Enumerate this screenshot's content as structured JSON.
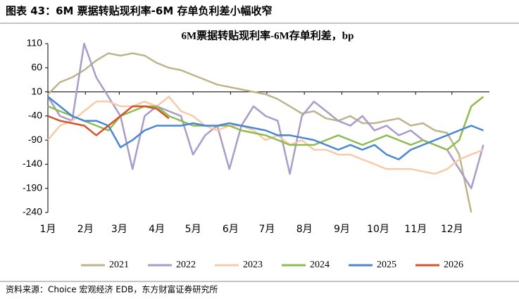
{
  "header": "图表 43：6M 票据转贴现利率-6M 存单负利差小幅收窄",
  "source": "资料来源：Choice 宏观经济 EDB，东方财富证券研究所",
  "chart_data": {
    "type": "line",
    "title": "6M票据转贴现利率-6M存单利差，bp",
    "x": [
      0,
      10,
      20,
      30,
      40,
      50,
      60,
      70,
      80,
      90,
      100,
      110,
      120,
      130,
      140,
      150,
      160,
      170,
      180,
      190,
      200,
      210,
      220,
      230,
      240,
      250,
      260,
      270,
      280,
      290,
      300,
      310,
      320,
      330,
      340,
      350,
      360
    ],
    "xlim": [
      0,
      365
    ],
    "xticks": [
      {
        "value": 0,
        "label": "1月"
      },
      {
        "value": 31,
        "label": "2月"
      },
      {
        "value": 59,
        "label": "3月"
      },
      {
        "value": 90,
        "label": "4月"
      },
      {
        "value": 120,
        "label": "5月"
      },
      {
        "value": 151,
        "label": "6月"
      },
      {
        "value": 181,
        "label": "7月"
      },
      {
        "value": 212,
        "label": "8月"
      },
      {
        "value": 243,
        "label": "9月"
      },
      {
        "value": 273,
        "label": "10月"
      },
      {
        "value": 304,
        "label": "11月"
      },
      {
        "value": 334,
        "label": "12月"
      }
    ],
    "ylim": [
      -240,
      110
    ],
    "yticks": [
      110,
      60,
      10,
      -40,
      -90,
      -140,
      -190,
      -240
    ],
    "x_axis_at": 10,
    "series": [
      {
        "name": "2021",
        "color": "#bcb58b",
        "values": [
          5,
          30,
          40,
          55,
          75,
          90,
          85,
          90,
          85,
          70,
          60,
          55,
          45,
          35,
          25,
          20,
          15,
          10,
          5,
          -5,
          -20,
          -35,
          -30,
          -45,
          -50,
          -40,
          -55,
          -55,
          -50,
          -45,
          -60,
          -55,
          -70,
          -75,
          -120,
          -240,
          null
        ]
      },
      {
        "name": "2022",
        "color": "#a99cc8",
        "values": [
          0,
          -40,
          -50,
          110,
          40,
          0,
          -40,
          -150,
          -40,
          -20,
          -30,
          -40,
          -120,
          -80,
          -60,
          -150,
          -60,
          -20,
          -40,
          -50,
          -160,
          -40,
          -10,
          -30,
          -50,
          -60,
          -40,
          -70,
          -60,
          -80,
          -70,
          -90,
          -100,
          -110,
          -150,
          -190,
          -100
        ]
      },
      {
        "name": "2023",
        "color": "#f8cba8",
        "values": [
          -90,
          -60,
          -50,
          -30,
          -10,
          -10,
          -20,
          -20,
          -10,
          -20,
          0,
          -30,
          -40,
          -60,
          -70,
          -60,
          -60,
          -70,
          -90,
          -80,
          -100,
          -90,
          -110,
          -110,
          -120,
          -120,
          -130,
          -140,
          -150,
          -150,
          -150,
          -155,
          -160,
          -150,
          -130,
          -120,
          -110
        ]
      },
      {
        "name": "2024",
        "color": "#8fbc4f",
        "values": [
          -20,
          -30,
          -40,
          -50,
          -60,
          -70,
          -40,
          -30,
          -20,
          -20,
          -40,
          -50,
          -60,
          -60,
          -60,
          -60,
          -70,
          -75,
          -80,
          -90,
          -100,
          -100,
          -100,
          -90,
          -80,
          -90,
          -100,
          -90,
          -80,
          -90,
          -100,
          -90,
          -100,
          -110,
          -90,
          -20,
          0
        ]
      },
      {
        "name": "2025",
        "color": "#4a86d1",
        "values": [
          0,
          -20,
          -40,
          -50,
          -50,
          -60,
          -105,
          -90,
          -70,
          -60,
          -60,
          -60,
          -55,
          -60,
          -60,
          -55,
          -60,
          -65,
          -70,
          -80,
          -80,
          -85,
          -90,
          -100,
          -110,
          -100,
          -110,
          -100,
          -120,
          -130,
          -110,
          -100,
          -90,
          -80,
          -70,
          -60,
          -70
        ]
      },
      {
        "name": "2026",
        "color": "#d6532a",
        "values": [
          -40,
          -50,
          -55,
          -60,
          -80,
          -60,
          -40,
          -20,
          -20,
          -25,
          -45,
          null,
          null,
          null,
          null,
          null,
          null,
          null,
          null,
          null,
          null,
          null,
          null,
          null,
          null,
          null,
          null,
          null,
          null,
          null,
          null,
          null,
          null,
          null,
          null,
          null,
          null
        ]
      }
    ]
  }
}
